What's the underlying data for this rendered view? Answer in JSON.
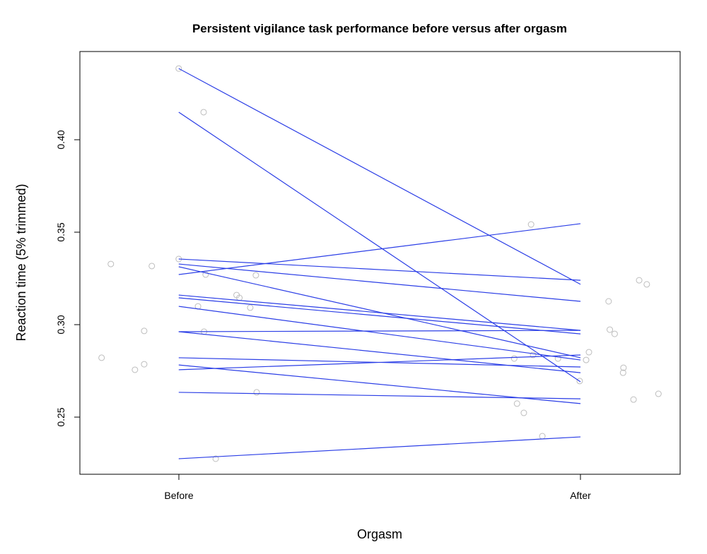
{
  "chart_data": {
    "type": "line",
    "title": "Persistent vigilance task performance before versus after orgasm",
    "xlabel": "Orgasm",
    "ylabel": "Reaction time (5% trimmed)",
    "categories": [
      "Before",
      "After"
    ],
    "xlim": [
      0.754,
      2.248
    ],
    "ylim": [
      0.2191,
      0.4477
    ],
    "yticks": [
      0.25,
      0.3,
      0.35,
      0.4
    ],
    "ytick_labels": [
      "0.25",
      "0.30",
      "0.35",
      "0.40"
    ],
    "grid": false,
    "line_color": "#2b3ee6",
    "point_color": "#bdbdbd",
    "paired_lines": [
      [
        0.4385,
        0.3218
      ],
      [
        0.4149,
        0.2691
      ],
      [
        0.3271,
        0.3546
      ],
      [
        0.3355,
        0.324
      ],
      [
        0.3328,
        0.3126
      ],
      [
        0.3313,
        0.2821
      ],
      [
        0.316,
        0.2969
      ],
      [
        0.3145,
        0.295
      ],
      [
        0.3099,
        0.2809
      ],
      [
        0.2962,
        0.2969
      ],
      [
        0.2962,
        0.274
      ],
      [
        0.2821,
        0.2771
      ],
      [
        0.2782,
        0.2573
      ],
      [
        0.2756,
        0.2836
      ],
      [
        0.2634,
        0.2599
      ],
      [
        0.2275,
        0.2393
      ]
    ],
    "jittered_points": [
      [
        0.808,
        0.2821
      ],
      [
        0.831,
        0.3328
      ],
      [
        0.891,
        0.2756
      ],
      [
        0.914,
        0.2966
      ],
      [
        0.914,
        0.2786
      ],
      [
        0.933,
        0.3317
      ],
      [
        1.0,
        0.4385
      ],
      [
        1.0,
        0.3355
      ],
      [
        1.048,
        0.3099
      ],
      [
        1.062,
        0.4149
      ],
      [
        1.067,
        0.3271
      ],
      [
        1.063,
        0.2962
      ],
      [
        1.092,
        0.2275
      ],
      [
        1.144,
        0.316
      ],
      [
        1.151,
        0.3145
      ],
      [
        1.178,
        0.3092
      ],
      [
        1.192,
        0.3267
      ],
      [
        1.194,
        0.2634
      ],
      [
        1.835,
        0.2817
      ],
      [
        1.842,
        0.2573
      ],
      [
        1.859,
        0.2523
      ],
      [
        1.877,
        0.3542
      ],
      [
        1.882,
        0.2836
      ],
      [
        1.905,
        0.2397
      ],
      [
        1.944,
        0.2817
      ],
      [
        1.998,
        0.2695
      ],
      [
        2.014,
        0.2809
      ],
      [
        2.021,
        0.2851
      ],
      [
        2.07,
        0.3126
      ],
      [
        2.073,
        0.2973
      ],
      [
        2.085,
        0.295
      ],
      [
        2.107,
        0.2767
      ],
      [
        2.106,
        0.274
      ],
      [
        2.132,
        0.2595
      ],
      [
        2.146,
        0.324
      ],
      [
        2.165,
        0.3218
      ],
      [
        2.194,
        0.2626
      ]
    ]
  }
}
